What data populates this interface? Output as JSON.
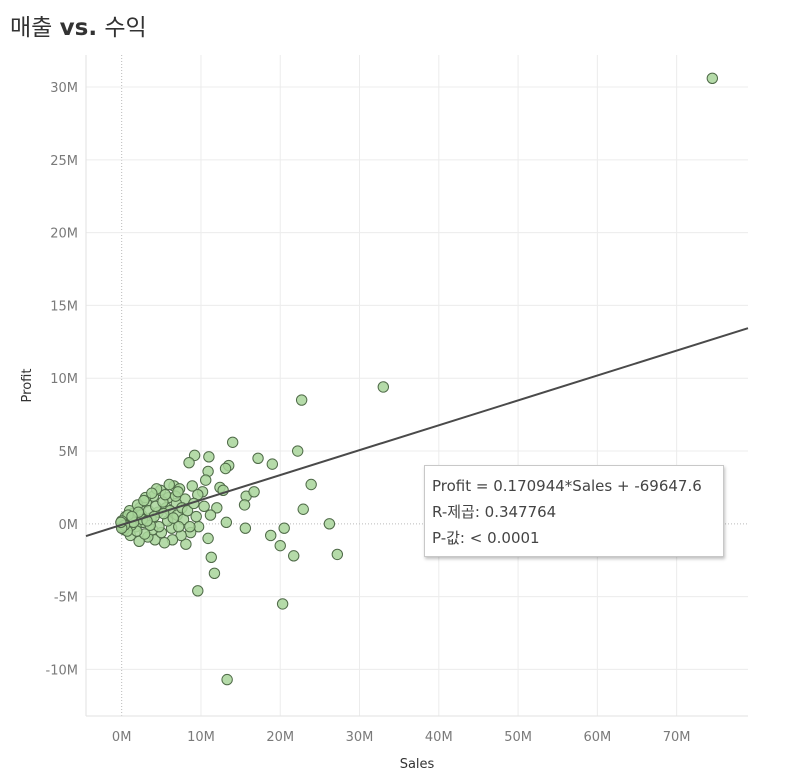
{
  "title": {
    "prefix": "매출",
    "vs": "vs.",
    "suffix": "수익"
  },
  "tooltip": {
    "line1": "Profit = 0.170944*Sales + -69647.6",
    "line2": "R-제곱: 0.347764",
    "line3": "P-값: < 0.0001"
  },
  "chart_data": {
    "type": "scatter",
    "xlabel": "Sales",
    "ylabel": "Profit",
    "xlim": [
      -4.5,
      79
    ],
    "ylim": [
      -13.2,
      32.2
    ],
    "x_ticks": [
      0,
      10,
      20,
      30,
      40,
      50,
      60,
      70
    ],
    "x_tick_labels": [
      "0M",
      "10M",
      "20M",
      "30M",
      "40M",
      "50M",
      "60M",
      "70M"
    ],
    "y_ticks": [
      -10,
      -5,
      0,
      5,
      10,
      15,
      20,
      25,
      30
    ],
    "y_tick_labels": [
      "-10M",
      "-5M",
      "0M",
      "5M",
      "10M",
      "15M",
      "20M",
      "25M",
      "30M"
    ],
    "grid": true,
    "trend_line": {
      "slope": 0.170944,
      "intercept": -0.0696476
    },
    "colors": {
      "point_fill": "#a8d59a",
      "point_stroke": "#4f6a48",
      "trend": "#4a4a4a",
      "grid": "#ececec"
    },
    "points": [
      [
        74.5,
        30.6
      ],
      [
        33.0,
        9.4
      ],
      [
        22.7,
        8.5
      ],
      [
        14.0,
        5.6
      ],
      [
        22.2,
        5.0
      ],
      [
        17.2,
        4.5
      ],
      [
        19.0,
        4.1
      ],
      [
        23.9,
        2.7
      ],
      [
        15.7,
        1.9
      ],
      [
        16.7,
        2.2
      ],
      [
        15.5,
        1.3
      ],
      [
        22.9,
        1.0
      ],
      [
        26.2,
        0.0
      ],
      [
        20.5,
        -0.3
      ],
      [
        15.6,
        -0.3
      ],
      [
        18.8,
        -0.8
      ],
      [
        20.0,
        -1.5
      ],
      [
        21.7,
        -2.2
      ],
      [
        27.2,
        -2.1
      ],
      [
        11.3,
        -2.3
      ],
      [
        11.7,
        -3.4
      ],
      [
        9.6,
        -4.6
      ],
      [
        20.3,
        -5.5
      ],
      [
        13.3,
        -10.7
      ],
      [
        13.5,
        4.0
      ],
      [
        13.1,
        3.8
      ],
      [
        11.0,
        4.6
      ],
      [
        9.2,
        4.7
      ],
      [
        8.5,
        4.2
      ],
      [
        10.9,
        3.6
      ],
      [
        10.6,
        3.0
      ],
      [
        12.4,
        2.5
      ],
      [
        12.8,
        2.3
      ],
      [
        10.2,
        2.2
      ],
      [
        9.6,
        2.0
      ],
      [
        8.9,
        2.6
      ],
      [
        12.0,
        1.1
      ],
      [
        11.2,
        0.6
      ],
      [
        9.7,
        -0.2
      ],
      [
        10.9,
        -1.0
      ],
      [
        13.2,
        0.1
      ],
      [
        8.7,
        -0.6
      ],
      [
        8.1,
        -1.4
      ],
      [
        7.5,
        -0.8
      ],
      [
        6.4,
        -1.1
      ],
      [
        5.4,
        -1.3
      ],
      [
        4.2,
        -1.1
      ],
      [
        3.3,
        -0.9
      ],
      [
        2.2,
        -1.2
      ],
      [
        1.1,
        -0.8
      ],
      [
        0.3,
        -0.4
      ],
      [
        0.6,
        0.3
      ],
      [
        1.4,
        0.7
      ],
      [
        2.3,
        1.1
      ],
      [
        3.1,
        1.5
      ],
      [
        4.0,
        1.9
      ],
      [
        4.9,
        2.3
      ],
      [
        5.9,
        1.8
      ],
      [
        6.6,
        2.6
      ],
      [
        7.3,
        2.4
      ],
      [
        8.0,
        1.7
      ],
      [
        6.9,
        1.4
      ],
      [
        5.6,
        1.1
      ],
      [
        4.6,
        0.8
      ],
      [
        3.7,
        0.4
      ],
      [
        2.7,
        0.1
      ],
      [
        1.8,
        -0.2
      ],
      [
        0.9,
        0.1
      ],
      [
        0.2,
        0.0
      ],
      [
        0.4,
        0.2
      ],
      [
        1.6,
        0.4
      ],
      [
        2.5,
        0.6
      ],
      [
        3.4,
        0.9
      ],
      [
        4.3,
        1.2
      ],
      [
        5.2,
        1.5
      ],
      [
        6.1,
        0.9
      ],
      [
        7.0,
        0.6
      ],
      [
        7.8,
        0.3
      ],
      [
        6.3,
        -0.3
      ],
      [
        5.0,
        -0.6
      ],
      [
        3.9,
        -0.4
      ],
      [
        2.9,
        -0.7
      ],
      [
        1.9,
        -0.5
      ],
      [
        1.2,
        -0.1
      ],
      [
        0.7,
        -0.5
      ],
      [
        0.1,
        -0.2
      ],
      [
        0.5,
        0.5
      ],
      [
        1.0,
        0.9
      ],
      [
        2.0,
        1.3
      ],
      [
        3.0,
        1.8
      ],
      [
        4.4,
        2.4
      ],
      [
        5.5,
        2.0
      ],
      [
        6.8,
        1.9
      ],
      [
        7.6,
        1.1
      ],
      [
        8.3,
        0.9
      ],
      [
        9.1,
        1.4
      ],
      [
        8.6,
        -0.2
      ],
      [
        7.2,
        -0.2
      ],
      [
        5.8,
        0.2
      ],
      [
        4.7,
        -0.2
      ],
      [
        3.6,
        -0.1
      ],
      [
        2.6,
        0.3
      ],
      [
        1.5,
        0.1
      ],
      [
        0.8,
        0.6
      ],
      [
        2.8,
        1.6
      ],
      [
        3.8,
        2.1
      ],
      [
        5.3,
        0.7
      ],
      [
        6.5,
        0.4
      ],
      [
        4.1,
        0.5
      ],
      [
        3.2,
        0.2
      ],
      [
        2.1,
        0.8
      ],
      [
        1.3,
        0.5
      ],
      [
        0.0,
        0.2
      ],
      [
        0.35,
        -0.1
      ],
      [
        0.0,
        -0.3
      ],
      [
        -0.1,
        0.1
      ],
      [
        6.0,
        2.7
      ],
      [
        7.1,
        2.2
      ],
      [
        9.4,
        0.5
      ],
      [
        10.4,
        1.2
      ]
    ]
  }
}
